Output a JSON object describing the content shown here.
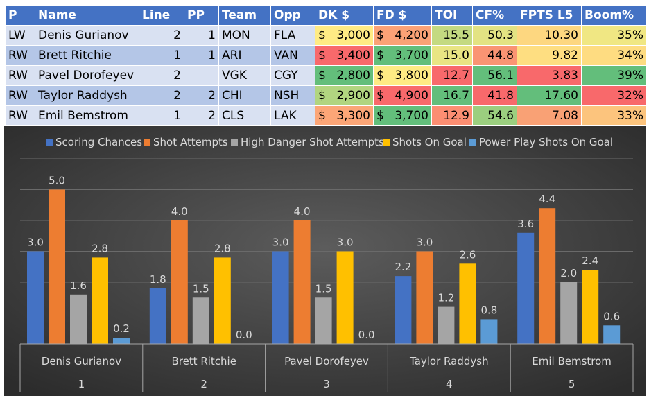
{
  "table": {
    "headers": [
      "P",
      "Name",
      "Line",
      "PP",
      "Team",
      "Opp",
      "DK $",
      "FD $",
      "TOI",
      "CF%",
      "FPTS L5",
      "Boom%"
    ],
    "rows": [
      {
        "pos": "LW",
        "name": "Denis Gurianov",
        "line": "2",
        "pp": "1",
        "team": "MON",
        "opp": "FLA",
        "dk": "3,000",
        "fd": "4,200",
        "toi": "15.5",
        "cf": "50.3",
        "fpts": "10.30",
        "boom": "35%"
      },
      {
        "pos": "RW",
        "name": "Brett Ritchie",
        "line": "1",
        "pp": "1",
        "team": "ARI",
        "opp": "VAN",
        "dk": "3,400",
        "fd": "3,700",
        "toi": "15.0",
        "cf": "44.8",
        "fpts": "9.82",
        "boom": "34%"
      },
      {
        "pos": "RW",
        "name": "Pavel Dorofeyev",
        "line": "2",
        "pp": "",
        "team": "VGK",
        "opp": "CGY",
        "dk": "2,800",
        "fd": "3,800",
        "toi": "12.7",
        "cf": "56.1",
        "fpts": "3.83",
        "boom": "39%"
      },
      {
        "pos": "RW",
        "name": "Taylor Raddysh",
        "line": "2",
        "pp": "2",
        "team": "CHI",
        "opp": "NSH",
        "dk": "2,900",
        "fd": "4,900",
        "toi": "16.7",
        "cf": "41.8",
        "fpts": "17.60",
        "boom": "32%"
      },
      {
        "pos": "RW",
        "name": "Emil Bemstrom",
        "line": "1",
        "pp": "2",
        "team": "CLS",
        "opp": "LAK",
        "dk": "3,300",
        "fd": "3,700",
        "toi": "12.9",
        "cf": "54.6",
        "fpts": "7.08",
        "boom": "33%"
      }
    ],
    "currency_symbol": "$",
    "cell_colors": {
      "dk": [
        "#ffeb84",
        "#f8696b",
        "#63be7b",
        "#b1d580",
        "#fca677"
      ],
      "fd": [
        "#fba276",
        "#63be7b",
        "#ffeb84",
        "#f8696b",
        "#63be7b"
      ],
      "toi": [
        "#c4da81",
        "#e9e583",
        "#f8696b",
        "#63be7b",
        "#fc8e72"
      ],
      "cf": [
        "#e3e383",
        "#fa9473",
        "#63be7b",
        "#f8696b",
        "#9bcf7f"
      ],
      "fpts": [
        "#fdd780",
        "#fede81",
        "#f8696b",
        "#63be7b",
        "#f9a175"
      ],
      "boom": [
        "#f0e783",
        "#fedc81",
        "#63be7b",
        "#f8696b",
        "#fcc47d"
      ]
    }
  },
  "chart_data": {
    "type": "bar",
    "categories": [
      "Denis Gurianov",
      "Brett Ritchie",
      "Pavel Dorofeyev",
      "Taylor Raddysh",
      "Emil Bemstrom"
    ],
    "category_numbers": [
      "1",
      "2",
      "3",
      "4",
      "5"
    ],
    "ylim": [
      0,
      6
    ],
    "grid": true,
    "legend_position": "top",
    "series": [
      {
        "name": "Scoring Chances",
        "color": "#4472c4",
        "values": [
          3.0,
          1.8,
          3.0,
          2.2,
          3.6
        ]
      },
      {
        "name": "Shot Attempts",
        "color": "#ed7d31",
        "values": [
          5.0,
          4.0,
          4.0,
          3.0,
          4.4
        ]
      },
      {
        "name": "High Danger Shot Attempts",
        "color": "#a5a5a5",
        "values": [
          1.6,
          1.5,
          1.5,
          1.2,
          2.0
        ]
      },
      {
        "name": "Shots On Goal",
        "color": "#ffc000",
        "values": [
          2.8,
          2.8,
          3.0,
          2.6,
          2.4
        ]
      },
      {
        "name": "Power Play Shots On Goal",
        "color": "#5b9bd5",
        "values": [
          0.2,
          0.0,
          0.0,
          0.8,
          0.6
        ]
      }
    ]
  }
}
